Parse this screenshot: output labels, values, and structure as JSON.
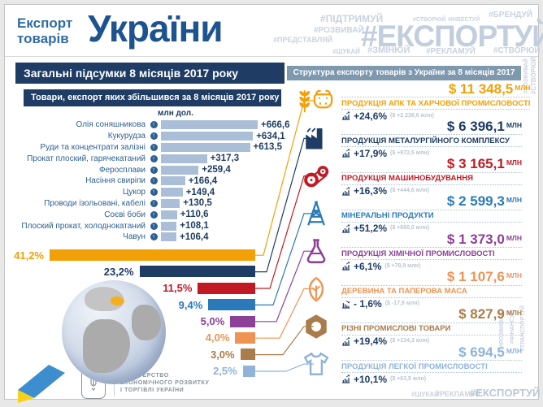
{
  "colors": {
    "navy": "#1e3c64",
    "steel_header": "#7e98ae",
    "growth_bar_fill": "#aabfd7",
    "title_blue": "#2f6ca6",
    "title_navy": "#1d5490",
    "hashtag_gray_blue": "#c2cedd"
  },
  "header": {
    "title_small_1": "Експорт",
    "title_small_2": "товарів",
    "title_main": "України",
    "hashtags": [
      "#ПІДТРИМУЙ",
      "#СТВОРЮЙ",
      "#ІНВЕСТУЙ",
      "#БРЕНДУЙ",
      "#РОЗВИВАЙ",
      "#ПРЕДСТАВЛЯЙ",
      "#ЕКСПОРТУЙ",
      "#ШУКАЙ",
      "#ЗМІНЮЙ",
      "#РЕКЛАМУЙ",
      "#СТВОРЮЙ",
      "#РОЗВИВАЙ",
      "#СТВОРЮЙ"
    ]
  },
  "left_panel": {
    "header": "Загальні підсумки 8 місяців 2017 року",
    "growth_chart": {
      "title": "Товари, експорт яких збільшився за 8 місяців 2017 року",
      "unit": "млн дол.",
      "items": [
        {
          "label": "Олія соняшникова",
          "display": "+666,6",
          "value": 666.6
        },
        {
          "label": "Кукурудза",
          "display": "+634,1",
          "value": 634.1
        },
        {
          "label": "Руди та концентрати залізні",
          "display": "+613,5",
          "value": 613.5
        },
        {
          "label": "Прокат плоский, гарячекатаний",
          "display": "+317,3",
          "value": 317.3
        },
        {
          "label": "Феросплави",
          "display": "+259,4",
          "value": 259.4
        },
        {
          "label": "Насіння свиріпи",
          "display": "+166,4",
          "value": 166.4
        },
        {
          "label": "Цукор",
          "display": "+149,4",
          "value": 149.4
        },
        {
          "label": "Проводи ізольовані, кабелі",
          "display": "+130,5",
          "value": 130.5
        },
        {
          "label": "Соєві боби",
          "display": "+110,6",
          "value": 110.6
        },
        {
          "label": "Плоский прокат, холоднокатаний",
          "display": "+108,1",
          "value": 108.1
        },
        {
          "label": "Чавун",
          "display": "+106,4",
          "value": 106.4
        }
      ]
    }
  },
  "right_panel": {
    "header": "Структура експорту товарів з України за 8 місяців 2017 року",
    "categories": [
      {
        "amount": "$ 11 348,5",
        "unit": "млн",
        "label": "ПРОДУКЦІЯ АПК ТА ХАРЧОВОЇ ПРОМИСЛОВОСТІ",
        "change": "+24,6%",
        "change_detail": "($ +2 238,6 млн)",
        "share": "41,2%",
        "share_value": 41.2,
        "color": "#f2a007",
        "icon": "wheat-cow-icon"
      },
      {
        "amount": "$ 6 396,1",
        "unit": "млн",
        "label": "ПРОДУКЦІЯ МЕТАЛУРГІЙНОГО КОМПЛЕКСУ",
        "change": "+17,9%",
        "change_detail": "($ +972,5 млн)",
        "share": "23,2%",
        "share_value": 23.2,
        "color": "#1e3c64",
        "icon": "factory-icon"
      },
      {
        "amount": "$ 3 165,1",
        "unit": "млн",
        "label": "ПРОДУКЦІЯ МАШИНОБУДУВАННЯ",
        "change": "+16,3%",
        "change_detail": "($ +444,6 млн)",
        "share": "11,5%",
        "share_value": 11.5,
        "color": "#c11a24",
        "icon": "machinery-icon"
      },
      {
        "amount": "$ 2 599,3",
        "unit": "млн",
        "label": "МІНЕРАЛЬНІ ПРОДУКТИ",
        "change": "+51,2%",
        "change_detail": "($ +880,0 млн)",
        "share": "9,4%",
        "share_value": 9.4,
        "color": "#2a7ab9",
        "icon": "oil-derrick-icon"
      },
      {
        "amount": "$ 1 373,0",
        "unit": "млн",
        "label": "ПРОДУКЦІЯ ХІМІЧНОЇ ПРОМИСЛОВОСТІ",
        "change": "+6,1%",
        "change_detail": "($ +78,8 млн)",
        "share": "5,0%",
        "share_value": 5.0,
        "color": "#8d4097",
        "icon": "chemistry-flask-icon"
      },
      {
        "amount": "$ 1 107,6",
        "unit": "млн",
        "label": "ДЕРЕВИНА ТА ПАПЕРОВА МАСА",
        "change": "- 1,6%",
        "change_detail": "($ -17,9 млн)",
        "share": "4,0%",
        "share_value": 4.0,
        "color": "#ef9352",
        "icon": "leaf-icon"
      },
      {
        "amount": "$ 827,9",
        "unit": "млн",
        "label": "РІЗНІ ПРОМИСЛОВІ ТОВАРИ",
        "change": "+19,4%",
        "change_detail": "($ +134,3 млн)",
        "share": "3,0%",
        "share_value": 3.0,
        "color": "#aa7b4b",
        "icon": "hex-nut-icon"
      },
      {
        "amount": "$ 694,5",
        "unit": "млн",
        "label": "ПРОДУКЦІЯ ЛЕГКОЇ ПРОМИСЛОВОСТІ",
        "change": "+10,1%",
        "change_detail": "($ +63,5 млн)",
        "share": "2,5%",
        "share_value": 2.5,
        "color": "#8fb3d9",
        "icon": "tshirt-icon"
      }
    ]
  },
  "footer": {
    "ministry": [
      "МІНІСТЕРСТВО",
      "ЕКОНОМІЧНОГО РОЗВИТКУ",
      "І ТОРГІВЛІ УКРАЇНИ"
    ],
    "hashtags": [
      "#ШУКАЙ",
      "#РЕКЛАМУЙ",
      "#ЕКСПОРТУЙ",
      "#РОЗВИВАЙ",
      "#ФІНАНСУЙ",
      "#ТРАНСПОРТУЙ"
    ]
  },
  "chart_data": [
    {
      "type": "bar",
      "orientation": "horizontal",
      "title": "Товари, експорт яких збільшився за 8 місяців 2017 року",
      "xlabel": "млн дол.",
      "categories": [
        "Олія соняшникова",
        "Кукурудза",
        "Руди та концентрати залізні",
        "Прокат плоский, гарячекатаний",
        "Феросплави",
        "Насіння свиріпи",
        "Цукор",
        "Проводи ізольовані, кабелі",
        "Соєві боби",
        "Плоский прокат, холоднокатаний",
        "Чавун"
      ],
      "values": [
        666.6,
        634.1,
        613.5,
        317.3,
        259.4,
        166.4,
        149.4,
        130.5,
        110.6,
        108.1,
        106.4
      ]
    },
    {
      "type": "bar",
      "orientation": "horizontal",
      "title": "Структура експорту товарів з України за 8 місяців 2017 року",
      "categories": [
        "ПРОДУКЦІЯ АПК ТА ХАРЧОВОЇ ПРОМИСЛОВОСТІ",
        "ПРОДУКЦІЯ МЕТАЛУРГІЙНОГО КОМПЛЕКСУ",
        "ПРОДУКЦІЯ МАШИНОБУДУВАННЯ",
        "МІНЕРАЛЬНІ ПРОДУКТИ",
        "ПРОДУКЦІЯ ХІМІЧНОЇ ПРОМИСЛОВОСТІ",
        "ДЕРЕВИНА ТА ПАПЕРОВА МАСА",
        "РІЗНІ ПРОМИСЛОВІ ТОВАРИ",
        "ПРОДУКЦІЯ ЛЕГКОЇ ПРОМИСЛОВОСТІ"
      ],
      "values": [
        41.2,
        23.2,
        11.5,
        9.4,
        5.0,
        4.0,
        3.0,
        2.5
      ],
      "amounts_mln_usd": [
        11348.5,
        6396.1,
        3165.1,
        2599.3,
        1373.0,
        1107.6,
        827.9,
        694.5
      ],
      "change_percent": [
        24.6,
        17.9,
        16.3,
        51.2,
        6.1,
        -1.6,
        19.4,
        10.1
      ],
      "change_mln_usd": [
        2238.6,
        972.5,
        444.6,
        880.0,
        78.8,
        -17.9,
        134.3,
        63.5
      ]
    }
  ]
}
